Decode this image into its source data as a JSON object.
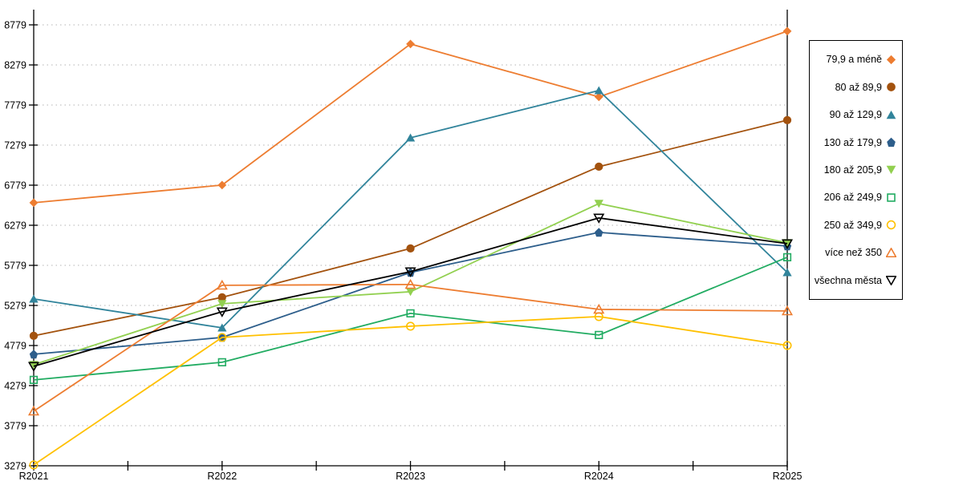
{
  "chart_data": {
    "type": "line",
    "title": "",
    "xlabel": "",
    "ylabel": "",
    "x_labels": [
      "R2021",
      "R2022",
      "R2023",
      "R2024",
      "R2025"
    ],
    "y_ticks": [
      3279,
      3779,
      4279,
      4779,
      5279,
      5779,
      6279,
      6779,
      7279,
      7779,
      8279,
      8779
    ],
    "ylim": [
      3279,
      8779
    ],
    "grid": "horizontal-dotted",
    "legend_position": "right-outside",
    "axis_color": "#000000",
    "gridline_color": "#c3c3c3",
    "series": [
      {
        "name": "79,9 a méně",
        "color": "#ED7D31",
        "marker": "diamond",
        "fill": "filled",
        "values": [
          6560,
          6780,
          8540,
          7880,
          8700
        ]
      },
      {
        "name": "80 až 89,9",
        "color": "#A3520E",
        "marker": "circle",
        "fill": "filled",
        "values": [
          4900,
          5380,
          5990,
          7010,
          7590
        ]
      },
      {
        "name": "90 až 129,9",
        "color": "#31849B",
        "marker": "triangle-up",
        "fill": "filled",
        "values": [
          5360,
          5000,
          7370,
          7960,
          5690
        ]
      },
      {
        "name": "130 až 179,9",
        "color": "#2D5E8B",
        "marker": "pentagon",
        "fill": "filled",
        "values": [
          4670,
          4880,
          5690,
          6190,
          6020
        ]
      },
      {
        "name": "180 až 205,9",
        "color": "#92D050",
        "marker": "triangle-down",
        "fill": "filled",
        "values": [
          4540,
          5300,
          5450,
          6550,
          6060
        ]
      },
      {
        "name": "206 až 249,9",
        "color": "#22AC62",
        "marker": "square",
        "fill": "hollow",
        "values": [
          4350,
          4570,
          5180,
          4910,
          5880
        ]
      },
      {
        "name": "250 až 349,9",
        "color": "#FFC000",
        "marker": "circle",
        "fill": "hollow",
        "values": [
          3290,
          4880,
          5020,
          5140,
          4780
        ]
      },
      {
        "name": "více než 350",
        "color": "#ED7D31",
        "marker": "triangle-up",
        "fill": "hollow",
        "values": [
          3960,
          5530,
          5540,
          5230,
          5210
        ]
      },
      {
        "name": "všechna města",
        "color": "#000000",
        "marker": "triangle-down",
        "fill": "hollow",
        "values": [
          4520,
          5200,
          5700,
          6370,
          6050
        ]
      }
    ]
  }
}
